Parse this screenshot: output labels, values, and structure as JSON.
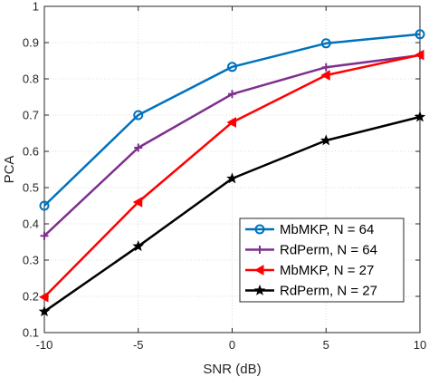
{
  "chart_data": {
    "type": "line",
    "xlabel": "SNR (dB)",
    "ylabel": "PCA",
    "x": [
      -10,
      -5,
      0,
      5,
      10
    ],
    "xlim": [
      -10,
      10
    ],
    "ylim": [
      0.1,
      1
    ],
    "xticks": [
      "-10",
      "-5",
      "0",
      "5",
      "10"
    ],
    "yticks": [
      "0.1",
      "0.2",
      "0.3",
      "0.4",
      "0.5",
      "0.6",
      "0.7",
      "0.8",
      "0.9",
      "1"
    ],
    "grid": true,
    "legend_position": "bottom-right",
    "series": [
      {
        "name": "MbMKP, N = 64",
        "color": "#0072bd",
        "marker": "circle",
        "values": [
          0.45,
          0.7,
          0.833,
          0.898,
          0.923
        ]
      },
      {
        "name": "RdPerm, N = 64",
        "color": "#7e2f8e",
        "marker": "plus",
        "values": [
          0.367,
          0.61,
          0.758,
          0.832,
          0.865
        ]
      },
      {
        "name": "MbMKP, N = 27",
        "color": "#ff0000",
        "marker": "triangle-left",
        "values": [
          0.198,
          0.46,
          0.68,
          0.81,
          0.866
        ]
      },
      {
        "name": "RdPerm, N = 27",
        "color": "#000000",
        "marker": "star",
        "values": [
          0.158,
          0.338,
          0.525,
          0.63,
          0.695
        ]
      }
    ]
  }
}
